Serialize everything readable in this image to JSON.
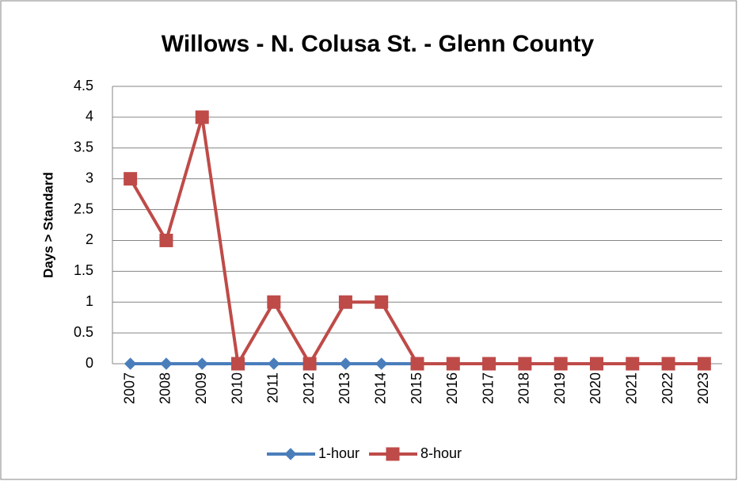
{
  "chart_data": {
    "type": "line",
    "title": "Willows - N. Colusa St. - Glenn County",
    "y_label": "Days > Standard",
    "categories": [
      "2007",
      "2008",
      "2009",
      "2010",
      "2011",
      "2012",
      "2013",
      "2014",
      "2015",
      "2016",
      "2017",
      "2018",
      "2019",
      "2020",
      "2021",
      "2022",
      "2023"
    ],
    "series": [
      {
        "name": "1-hour",
        "color": "#4a7ebb",
        "marker": "diamond",
        "values": [
          0,
          0,
          0,
          0,
          0,
          0,
          0,
          0,
          0,
          0,
          0,
          0,
          0,
          0,
          0,
          0,
          0
        ]
      },
      {
        "name": "8-hour",
        "color": "#be4b48",
        "marker": "square",
        "values": [
          3,
          2,
          4,
          0,
          1,
          0,
          1,
          1,
          0,
          0,
          0,
          0,
          0,
          0,
          0,
          0,
          0
        ]
      }
    ],
    "ylim": [
      0,
      4.5
    ],
    "yticks": [
      0,
      0.5,
      1,
      1.5,
      2,
      2.5,
      3,
      3.5,
      4,
      4.5
    ],
    "grid": true,
    "legend": "bottom"
  }
}
